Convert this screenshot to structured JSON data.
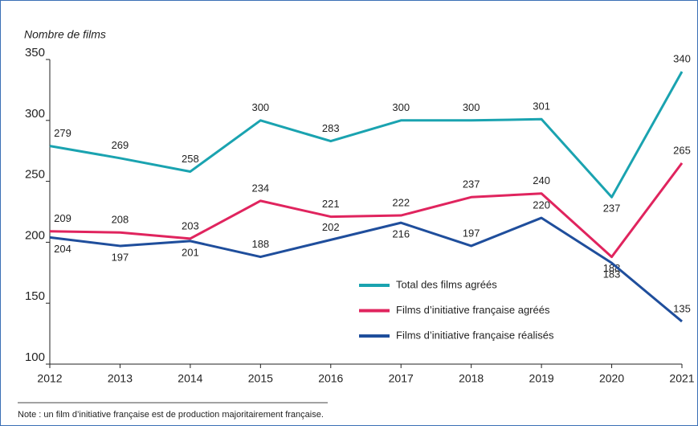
{
  "chart_data": {
    "type": "line",
    "y_axis_label": "Nombre de films",
    "x": [
      2012,
      2013,
      2014,
      2015,
      2016,
      2017,
      2018,
      2019,
      2020,
      2021
    ],
    "xlim": [
      2012,
      2021
    ],
    "xticks": [
      2012,
      2013,
      2014,
      2015,
      2016,
      2017,
      2018,
      2019,
      2020,
      2021
    ],
    "ylim": [
      100,
      350
    ],
    "yticks": [
      100,
      150,
      200,
      250,
      300,
      350
    ],
    "series": [
      {
        "name": "Total des films agréés",
        "color": "#1aa3b0",
        "values": [
          279,
          269,
          258,
          300,
          283,
          300,
          300,
          301,
          237,
          340
        ]
      },
      {
        "name": "Films d’initiative française agréés",
        "color": "#e0245e",
        "values": [
          209,
          208,
          203,
          234,
          221,
          222,
          237,
          240,
          188,
          265
        ]
      },
      {
        "name": "Films d’initiative française réalisés",
        "color": "#1f4e9c",
        "values": [
          204,
          197,
          201,
          188,
          202,
          216,
          197,
          220,
          183,
          135
        ]
      }
    ],
    "note": "Note : un film d’initiative française est de production majoritairement française."
  }
}
